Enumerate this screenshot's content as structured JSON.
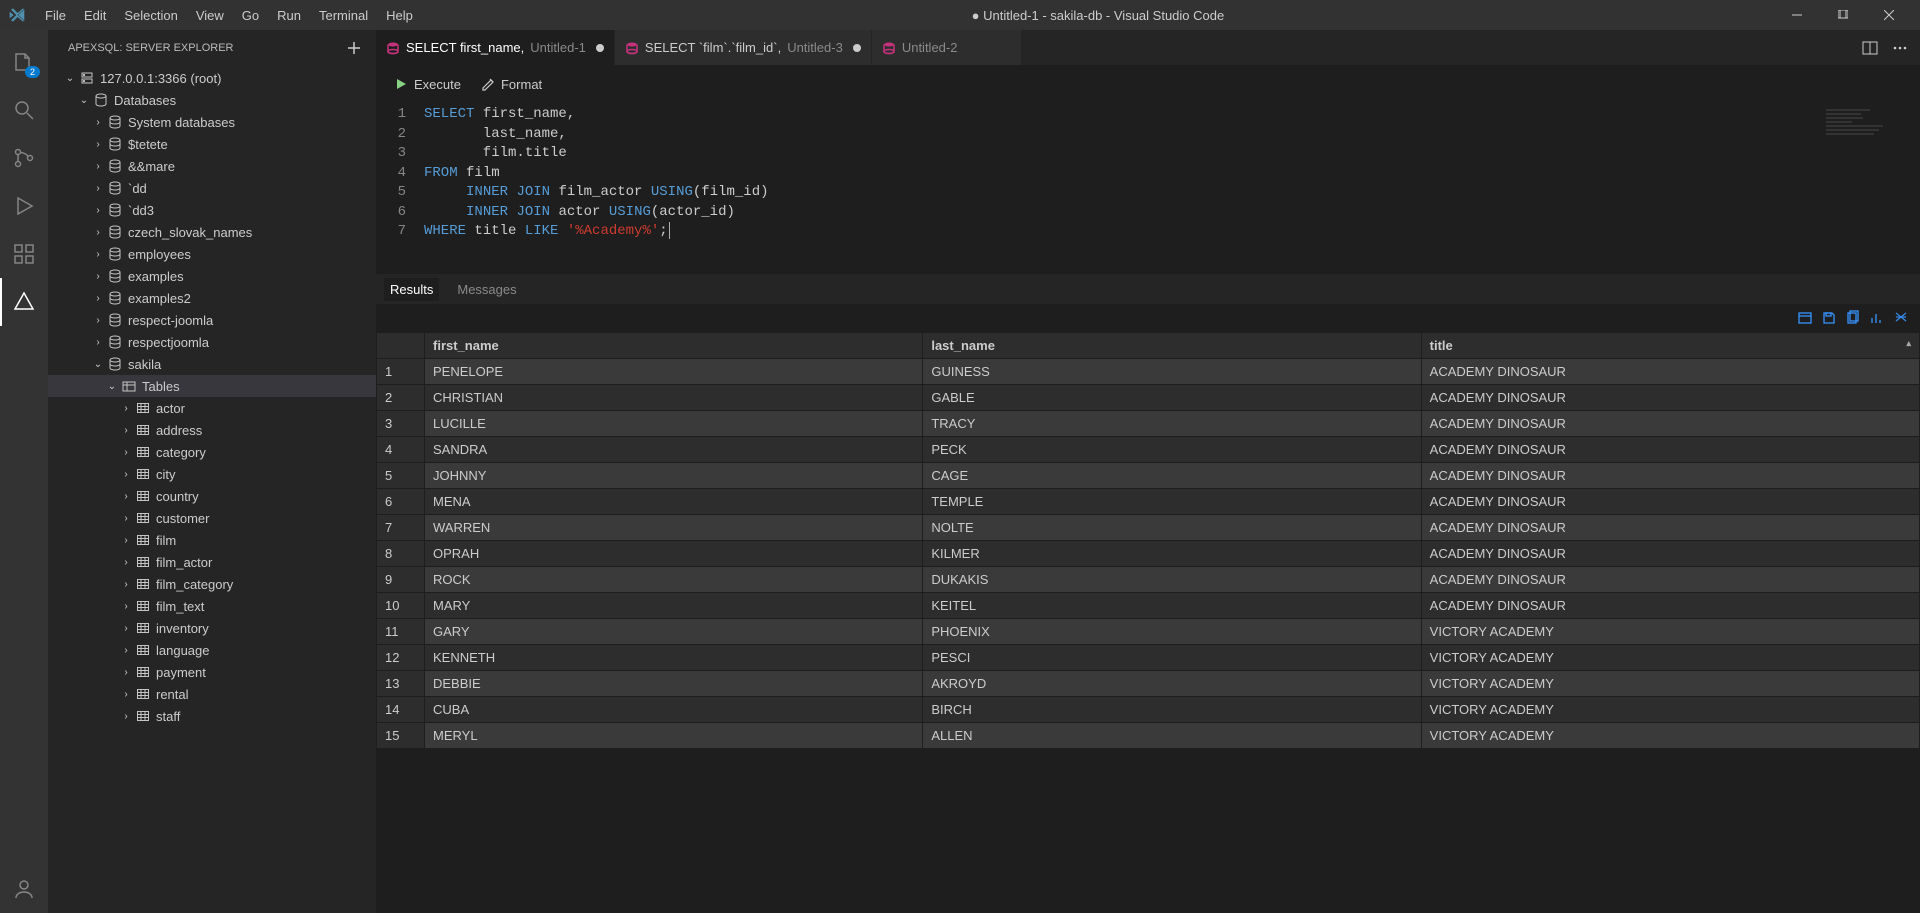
{
  "titlebar": {
    "menus": [
      "File",
      "Edit",
      "Selection",
      "View",
      "Go",
      "Run",
      "Terminal",
      "Help"
    ],
    "title": "● Untitled-1 - sakila-db - Visual Studio Code"
  },
  "activitybar": {
    "badge": "2"
  },
  "sidebar": {
    "header": "APEXSQL: SERVER EXPLORER",
    "server": "127.0.0.1:3366 (root)",
    "databases_label": "Databases",
    "databases": [
      "System databases",
      "$tetete",
      "&&mare",
      "`dd",
      "`dd3",
      "czech_slovak_names",
      "employees",
      "examples",
      "examples2",
      "respect-joomla",
      "respectjoomla"
    ],
    "current_db": "sakila",
    "tables_label": "Tables",
    "tables": [
      "actor",
      "address",
      "category",
      "city",
      "country",
      "customer",
      "film",
      "film_actor",
      "film_category",
      "film_text",
      "inventory",
      "language",
      "payment",
      "rental",
      "staff"
    ]
  },
  "tabs": [
    {
      "label_prefix": "SELECT first_name,",
      "label_suffix": "Untitled-1",
      "active": true,
      "dirty": true
    },
    {
      "label_prefix": "SELECT `film`.`film_id`,",
      "label_suffix": "Untitled-3",
      "active": false,
      "dirty": true
    },
    {
      "label_prefix": "",
      "label_suffix": "Untitled-2",
      "active": false,
      "dirty": false
    }
  ],
  "toolbar": {
    "execute": "Execute",
    "format": "Format"
  },
  "code": {
    "lines": [
      [
        {
          "t": "SELECT",
          "c": "kw"
        },
        {
          "t": " first_name,",
          "c": "ident"
        }
      ],
      [
        {
          "t": "       last_name,",
          "c": "ident"
        }
      ],
      [
        {
          "t": "       film.title",
          "c": "ident"
        }
      ],
      [
        {
          "t": "FROM",
          "c": "kw"
        },
        {
          "t": " film",
          "c": "ident"
        }
      ],
      [
        {
          "t": "     ",
          "c": "ident"
        },
        {
          "t": "INNER",
          "c": "kw"
        },
        {
          "t": " ",
          "c": "ident"
        },
        {
          "t": "JOIN",
          "c": "kw"
        },
        {
          "t": " film_actor ",
          "c": "ident"
        },
        {
          "t": "USING",
          "c": "kw"
        },
        {
          "t": "(film_id)",
          "c": "ident"
        }
      ],
      [
        {
          "t": "     ",
          "c": "ident"
        },
        {
          "t": "INNER",
          "c": "kw"
        },
        {
          "t": " ",
          "c": "ident"
        },
        {
          "t": "JOIN",
          "c": "kw"
        },
        {
          "t": " actor ",
          "c": "ident"
        },
        {
          "t": "USING",
          "c": "kw"
        },
        {
          "t": "(actor_id)",
          "c": "ident"
        }
      ],
      [
        {
          "t": "WHERE",
          "c": "kw"
        },
        {
          "t": " title ",
          "c": "ident"
        },
        {
          "t": "LIKE",
          "c": "kw"
        },
        {
          "t": " ",
          "c": "ident"
        },
        {
          "t": "'%Academy%'",
          "c": "str"
        },
        {
          "t": ";",
          "c": "ident"
        }
      ]
    ]
  },
  "results": {
    "tabs": {
      "results": "Results",
      "messages": "Messages"
    },
    "columns": [
      "first_name",
      "last_name",
      "title"
    ],
    "rows": [
      [
        "PENELOPE",
        "GUINESS",
        "ACADEMY DINOSAUR"
      ],
      [
        "CHRISTIAN",
        "GABLE",
        "ACADEMY DINOSAUR"
      ],
      [
        "LUCILLE",
        "TRACY",
        "ACADEMY DINOSAUR"
      ],
      [
        "SANDRA",
        "PECK",
        "ACADEMY DINOSAUR"
      ],
      [
        "JOHNNY",
        "CAGE",
        "ACADEMY DINOSAUR"
      ],
      [
        "MENA",
        "TEMPLE",
        "ACADEMY DINOSAUR"
      ],
      [
        "WARREN",
        "NOLTE",
        "ACADEMY DINOSAUR"
      ],
      [
        "OPRAH",
        "KILMER",
        "ACADEMY DINOSAUR"
      ],
      [
        "ROCK",
        "DUKAKIS",
        "ACADEMY DINOSAUR"
      ],
      [
        "MARY",
        "KEITEL",
        "ACADEMY DINOSAUR"
      ],
      [
        "GARY",
        "PHOENIX",
        "VICTORY ACADEMY"
      ],
      [
        "KENNETH",
        "PESCI",
        "VICTORY ACADEMY"
      ],
      [
        "DEBBIE",
        "AKROYD",
        "VICTORY ACADEMY"
      ],
      [
        "CUBA",
        "BIRCH",
        "VICTORY ACADEMY"
      ],
      [
        "MERYL",
        "ALLEN",
        "VICTORY ACADEMY"
      ]
    ]
  }
}
